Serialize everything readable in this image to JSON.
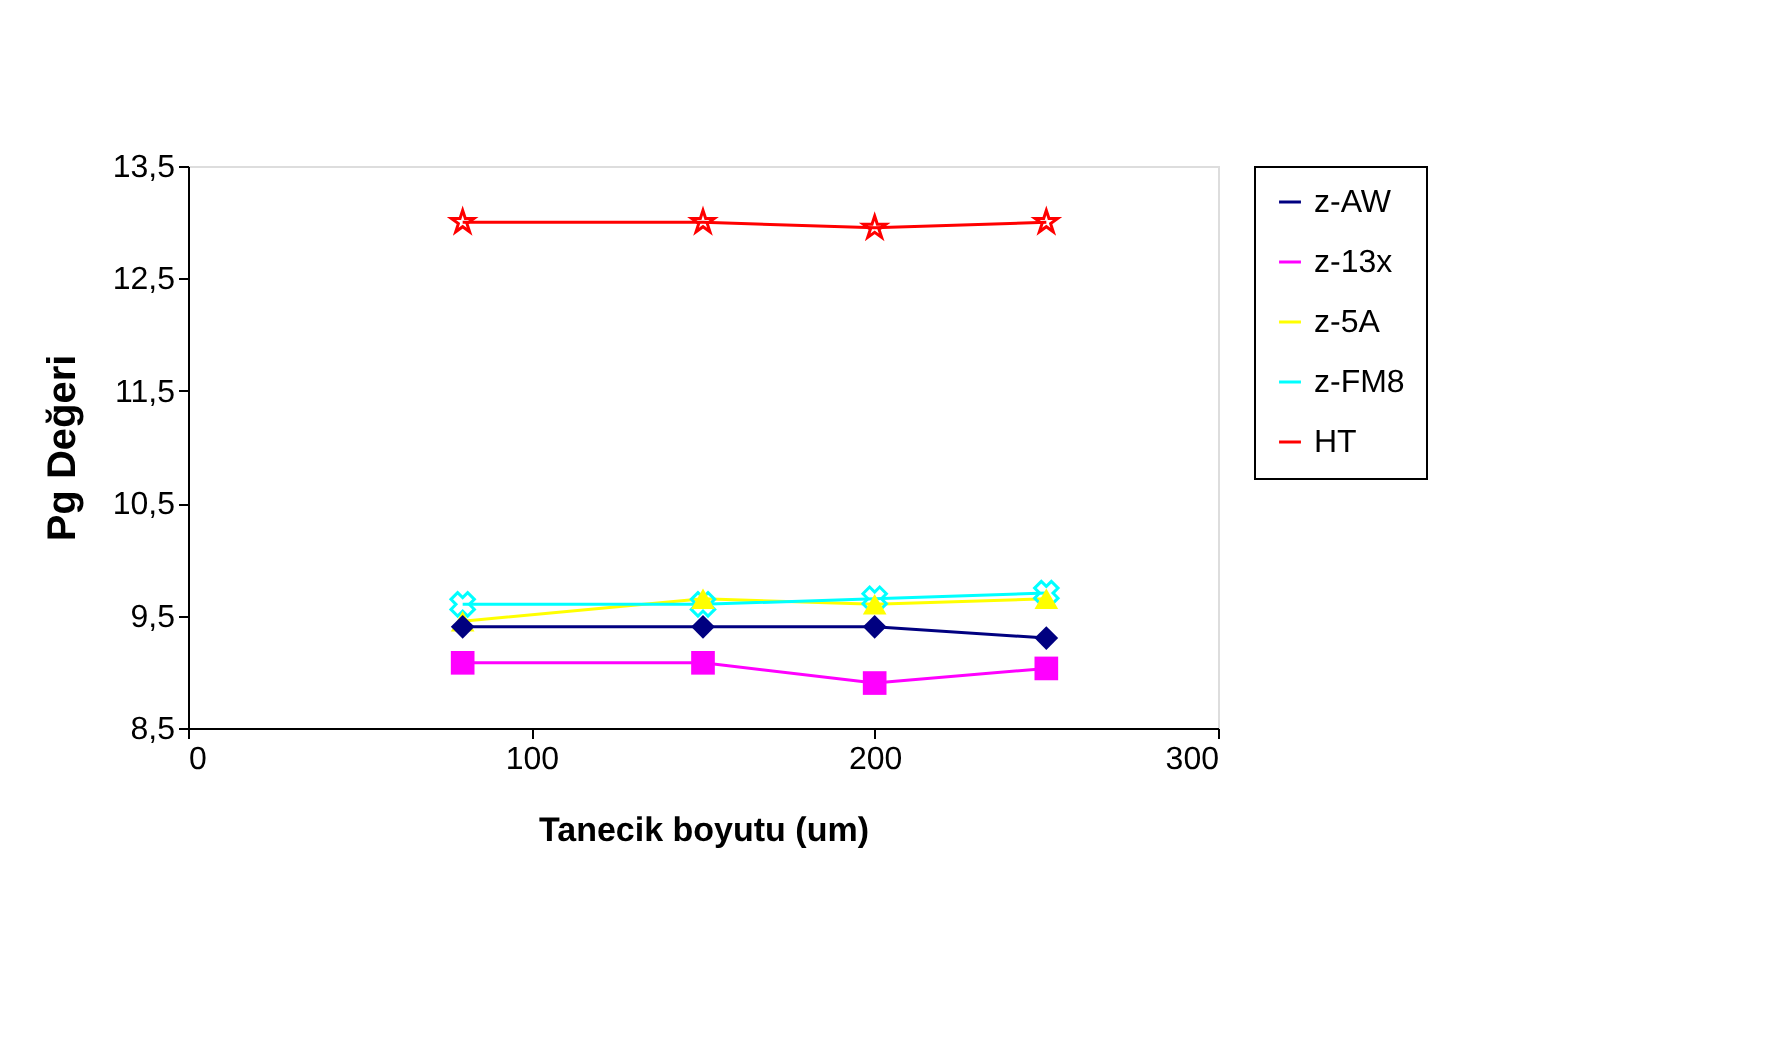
{
  "chart_data": {
    "type": "line",
    "xlabel": "Tanecik boyutu (um)",
    "ylabel": "Pg Değeri",
    "x": [
      80,
      150,
      200,
      250
    ],
    "series": [
      {
        "name": "z-AW",
        "color": "#000080",
        "marker": "diamond",
        "values": [
          9.4,
          9.4,
          9.4,
          9.3
        ]
      },
      {
        "name": "z-13x",
        "color": "#ff00ff",
        "marker": "square",
        "values": [
          9.08,
          9.08,
          8.9,
          9.03
        ]
      },
      {
        "name": "z-5A",
        "color": "#ffff00",
        "marker": "triangle",
        "values": [
          9.45,
          9.65,
          9.6,
          9.65
        ]
      },
      {
        "name": "z-FM8",
        "color": "#00ffff",
        "marker": "cross",
        "values": [
          9.6,
          9.6,
          9.65,
          9.7
        ]
      },
      {
        "name": "HT",
        "color": "#ff0000",
        "marker": "star",
        "values": [
          13.0,
          13.0,
          12.95,
          13.0
        ]
      }
    ],
    "xlim": [
      0,
      300
    ],
    "xticks": [
      0,
      100,
      200,
      300
    ],
    "ylim": [
      8.5,
      13.5
    ],
    "yticks": [
      {
        "value": 8.5,
        "label": "8,5"
      },
      {
        "value": 9.5,
        "label": "9,5"
      },
      {
        "value": 10.5,
        "label": "10,5"
      },
      {
        "value": 11.5,
        "label": "11,5"
      },
      {
        "value": 12.5,
        "label": "12,5"
      },
      {
        "value": 13.5,
        "label": "13,5"
      }
    ],
    "grid": false,
    "legend": "right",
    "line_style": "solid"
  }
}
